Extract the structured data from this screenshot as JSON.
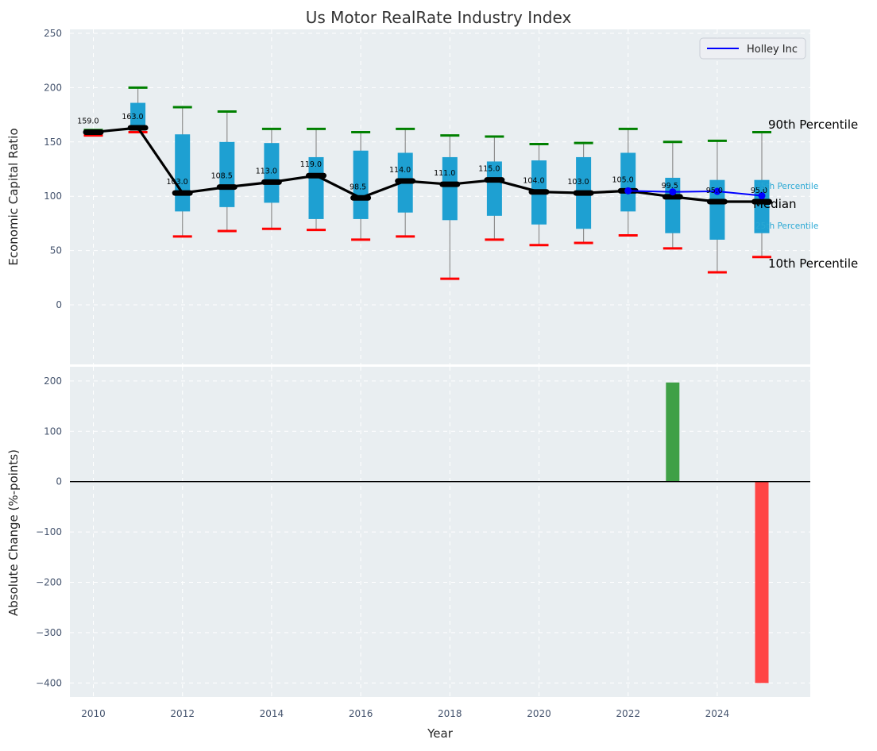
{
  "title": "Us Motor RealRate Industry Index",
  "legend": {
    "label": "Holley Inc",
    "line_color": "#0000ff"
  },
  "annotations": {
    "p90": "90th Percentile",
    "p75": "75th Percentile",
    "median": "Median",
    "p25": "25th Percentile",
    "p10": "10th Percentile"
  },
  "colors": {
    "box_fill": "#1ea0d2",
    "p90_cap": "#008000",
    "p10_cap": "#ff0000",
    "whisker": "#8f8f8f",
    "median_line": "#000000",
    "holley_line": "#0000ff",
    "bar_positive": "#3fa046",
    "bar_negative": "#ff4545",
    "plot_bg": "#e9eef1",
    "grid": "#ffffff",
    "tick": "#45546e",
    "zero_line": "#000000"
  },
  "chart_data": [
    {
      "type": "boxplot-with-median-line",
      "title": "Us Motor RealRate Industry Index",
      "ylabel": "Economic Capital Ratio",
      "yticks": [
        250,
        200,
        150,
        100,
        50,
        0
      ],
      "ylim": [
        -55,
        254
      ],
      "xticks": [
        2010,
        2012,
        2014,
        2016,
        2018,
        2020,
        2022,
        2024
      ],
      "grid": true,
      "legend_position": "upper right",
      "percentiles": [
        {
          "year": 2010,
          "p10": 156,
          "p25": 157,
          "median": 159.0,
          "p75": 160,
          "p90": 161,
          "label": "159.0"
        },
        {
          "year": 2011,
          "p10": 159,
          "p25": 161,
          "median": 163.0,
          "p75": 186,
          "p90": 200,
          "label": "163.0"
        },
        {
          "year": 2012,
          "p10": 63,
          "p25": 86,
          "median": 103.0,
          "p75": 157,
          "p90": 182,
          "label": "103.0"
        },
        {
          "year": 2013,
          "p10": 68,
          "p25": 90,
          "median": 108.5,
          "p75": 150,
          "p90": 178,
          "label": "108.5"
        },
        {
          "year": 2014,
          "p10": 70,
          "p25": 94,
          "median": 113.0,
          "p75": 149,
          "p90": 162,
          "label": "113.0"
        },
        {
          "year": 2015,
          "p10": 69,
          "p25": 79,
          "median": 119.0,
          "p75": 136,
          "p90": 162,
          "label": "119.0"
        },
        {
          "year": 2016,
          "p10": 60,
          "p25": 79,
          "median": 98.5,
          "p75": 142,
          "p90": 159,
          "label": "98.5"
        },
        {
          "year": 2017,
          "p10": 63,
          "p25": 85,
          "median": 114.0,
          "p75": 140,
          "p90": 162,
          "label": "114.0"
        },
        {
          "year": 2018,
          "p10": 24,
          "p25": 78,
          "median": 111.0,
          "p75": 136,
          "p90": 156,
          "label": "111.0"
        },
        {
          "year": 2019,
          "p10": 60,
          "p25": 82,
          "median": 115.0,
          "p75": 132,
          "p90": 155,
          "label": "115.0"
        },
        {
          "year": 2020,
          "p10": 55,
          "p25": 74,
          "median": 104.0,
          "p75": 133,
          "p90": 148,
          "label": "104.0"
        },
        {
          "year": 2021,
          "p10": 57,
          "p25": 70,
          "median": 103.0,
          "p75": 136,
          "p90": 149,
          "label": "103.0"
        },
        {
          "year": 2022,
          "p10": 64,
          "p25": 86,
          "median": 105.0,
          "p75": 140,
          "p90": 162,
          "label": "105.0"
        },
        {
          "year": 2023,
          "p10": 52,
          "p25": 66,
          "median": 99.5,
          "p75": 117,
          "p90": 150,
          "label": "99.5"
        },
        {
          "year": 2024,
          "p10": 30,
          "p25": 60,
          "median": 95.0,
          "p75": 115,
          "p90": 151,
          "label": "95.0"
        },
        {
          "year": 2025,
          "p10": 44,
          "p25": 66,
          "median": 95.0,
          "p75": 115,
          "p90": 159,
          "label": "95.0"
        }
      ],
      "series": [
        {
          "name": "Holley Inc",
          "points": [
            {
              "year": 2022,
              "value": 105.0
            },
            {
              "year": 2023,
              "value": 104.0
            },
            {
              "year": 2024,
              "value": 104.5
            },
            {
              "year": 2025,
              "value": 100.5
            }
          ]
        }
      ]
    },
    {
      "type": "bar",
      "ylabel": "Absolute Change (%-points)",
      "xlabel": "Year",
      "yticks": [
        200,
        100,
        0,
        -100,
        -200,
        -300,
        -400
      ],
      "ylim": [
        -431,
        229
      ],
      "xticks": [
        2010,
        2012,
        2014,
        2016,
        2018,
        2020,
        2022,
        2024
      ],
      "grid": true,
      "bars": [
        {
          "year": 2023,
          "value": 197,
          "direction": "up"
        },
        {
          "year": 2025,
          "value": -400,
          "direction": "down"
        }
      ]
    }
  ]
}
